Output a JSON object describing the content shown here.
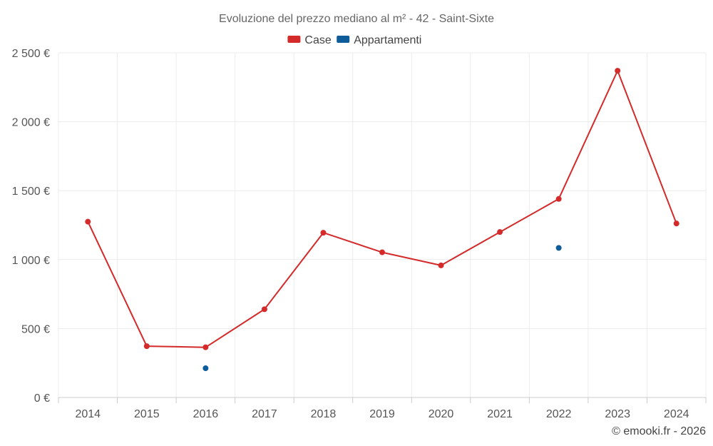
{
  "chart_data": {
    "type": "line",
    "title": "Evoluzione del prezzo mediano al m² - 42 - Saint-Sixte",
    "xlabel": "",
    "ylabel": "",
    "categories": [
      "2014",
      "2015",
      "2016",
      "2017",
      "2018",
      "2019",
      "2020",
      "2021",
      "2022",
      "2023",
      "2024"
    ],
    "ylim": [
      0,
      2500
    ],
    "yticks": [
      0,
      500,
      1000,
      1500,
      2000,
      2500
    ],
    "ytick_labels": [
      "0 €",
      "500 €",
      "1 000 €",
      "1 500 €",
      "2 000 €",
      "2 500 €"
    ],
    "grid": true,
    "legend_position": "top-center",
    "series": [
      {
        "name": "Case",
        "color": "#d42a2a",
        "values": [
          1275,
          372,
          364,
          640,
          1195,
          1053,
          958,
          1200,
          1440,
          2370,
          1262
        ]
      },
      {
        "name": "Appartamenti",
        "color": "#0e5c9a",
        "values": [
          null,
          null,
          212,
          null,
          null,
          null,
          null,
          null,
          1085,
          null,
          null
        ]
      }
    ]
  },
  "credit": "© emooki.fr - 2026"
}
